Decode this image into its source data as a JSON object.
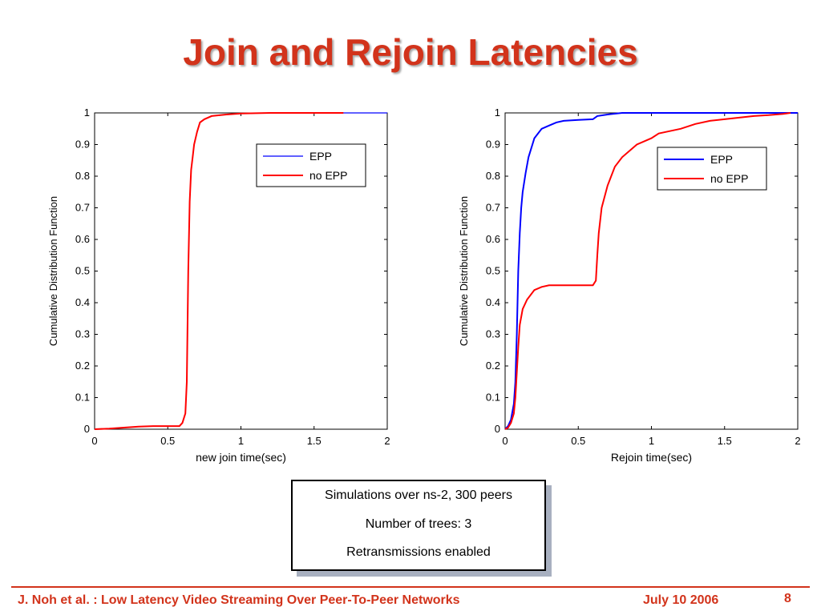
{
  "slide": {
    "title": "Join and Rejoin Latencies",
    "footer_left": "J. Noh et al. : Low Latency Video Streaming Over Peer-To-Peer Networks",
    "footer_date": "July 10 2006",
    "page_number": "8",
    "accent_color": "#d2331b"
  },
  "infobox": {
    "lines": [
      "Simulations over ns-2, 300 peers",
      "Number of trees: 3",
      "Retransmissions enabled"
    ]
  },
  "chart_data": [
    {
      "type": "line",
      "xlabel": "new join time(sec)",
      "ylabel": "Cumulative Distribution Function",
      "xlim": [
        0,
        2
      ],
      "ylim": [
        0,
        1
      ],
      "xticks": [
        "0",
        "0.5",
        "1",
        "1.5",
        "2"
      ],
      "yticks": [
        "0",
        "0.1",
        "0.2",
        "0.3",
        "0.4",
        "0.5",
        "0.6",
        "0.7",
        "0.8",
        "0.9",
        "1"
      ],
      "grid": false,
      "legend_position": "top-right",
      "series": [
        {
          "name": "EPP",
          "color": "#0000ff",
          "x": [
            0,
            0.1,
            0.2,
            0.3,
            0.4,
            0.5,
            0.58,
            0.6,
            0.62,
            0.63,
            0.64,
            0.65,
            0.66,
            0.67,
            0.68,
            0.7,
            0.72,
            0.75,
            0.8,
            0.9,
            1.0,
            1.2,
            1.7,
            2.0
          ],
          "y": [
            0,
            0.002,
            0.005,
            0.008,
            0.01,
            0.01,
            0.01,
            0.02,
            0.05,
            0.15,
            0.5,
            0.72,
            0.82,
            0.86,
            0.9,
            0.94,
            0.97,
            0.98,
            0.99,
            0.995,
            0.998,
            1,
            1,
            1
          ]
        },
        {
          "name": "no EPP",
          "color": "#ff0000",
          "x": [
            0,
            0.1,
            0.2,
            0.3,
            0.4,
            0.5,
            0.58,
            0.6,
            0.62,
            0.63,
            0.64,
            0.65,
            0.66,
            0.67,
            0.68,
            0.7,
            0.72,
            0.75,
            0.8,
            0.9,
            1.0,
            1.2,
            1.7
          ],
          "y": [
            0,
            0.002,
            0.005,
            0.008,
            0.01,
            0.01,
            0.01,
            0.02,
            0.05,
            0.15,
            0.5,
            0.72,
            0.82,
            0.86,
            0.9,
            0.94,
            0.97,
            0.98,
            0.99,
            0.995,
            0.998,
            1,
            1
          ]
        }
      ]
    },
    {
      "type": "line",
      "xlabel": "Rejoin time(sec)",
      "ylabel": "Cumulative Distribution Function",
      "xlim": [
        0,
        2
      ],
      "ylim": [
        0,
        1
      ],
      "xticks": [
        "0",
        "0.5",
        "1",
        "1.5",
        "2"
      ],
      "yticks": [
        "0",
        "0.1",
        "0.2",
        "0.3",
        "0.4",
        "0.5",
        "0.6",
        "0.7",
        "0.8",
        "0.9",
        "1"
      ],
      "grid": false,
      "legend_position": "top-right",
      "series": [
        {
          "name": "EPP",
          "color": "#0000ff",
          "x": [
            0,
            0.02,
            0.04,
            0.06,
            0.07,
            0.08,
            0.09,
            0.1,
            0.11,
            0.12,
            0.14,
            0.16,
            0.2,
            0.25,
            0.3,
            0.35,
            0.4,
            0.5,
            0.6,
            0.63,
            0.7,
            0.8,
            1.0,
            2.0
          ],
          "y": [
            0,
            0.01,
            0.03,
            0.08,
            0.15,
            0.3,
            0.5,
            0.62,
            0.7,
            0.75,
            0.81,
            0.86,
            0.92,
            0.95,
            0.96,
            0.97,
            0.975,
            0.978,
            0.98,
            0.99,
            0.995,
            1,
            1,
            1
          ]
        },
        {
          "name": "no EPP",
          "color": "#ff0000",
          "x": [
            0,
            0.02,
            0.04,
            0.06,
            0.07,
            0.08,
            0.09,
            0.1,
            0.12,
            0.15,
            0.2,
            0.25,
            0.3,
            0.4,
            0.5,
            0.6,
            0.62,
            0.63,
            0.64,
            0.66,
            0.7,
            0.75,
            0.8,
            0.9,
            1.0,
            1.05,
            1.1,
            1.2,
            1.3,
            1.4,
            1.5,
            1.6,
            1.7,
            1.8,
            1.9,
            1.95
          ],
          "y": [
            0,
            0.005,
            0.02,
            0.05,
            0.1,
            0.18,
            0.26,
            0.33,
            0.38,
            0.41,
            0.44,
            0.45,
            0.455,
            0.455,
            0.455,
            0.455,
            0.47,
            0.55,
            0.62,
            0.7,
            0.77,
            0.83,
            0.86,
            0.9,
            0.92,
            0.935,
            0.94,
            0.95,
            0.965,
            0.975,
            0.98,
            0.985,
            0.99,
            0.993,
            0.997,
            1
          ]
        }
      ]
    }
  ]
}
